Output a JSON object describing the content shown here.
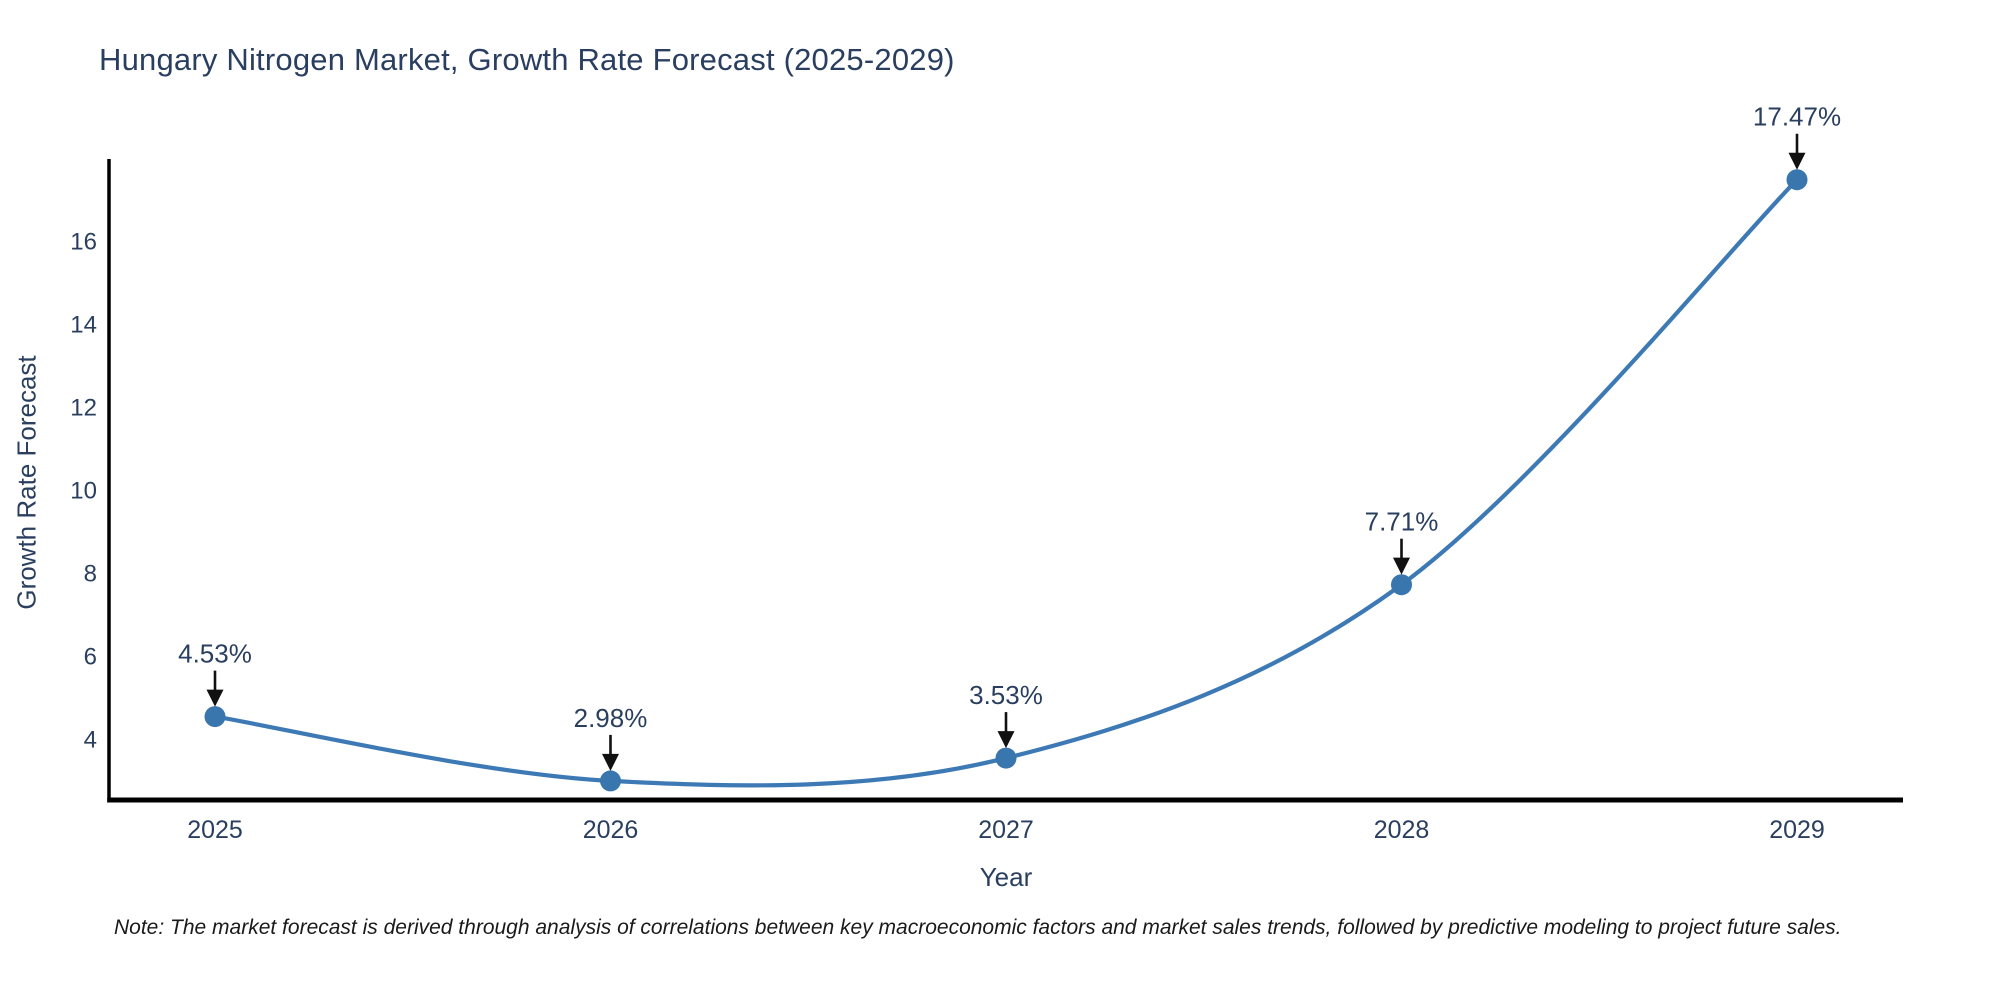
{
  "title": "Hungary Nitrogen Market, Growth Rate Forecast (2025-2029)",
  "footnote": "Note: The market forecast is derived through analysis of correlations between key macroeconomic factors and market sales trends, followed by predictive modeling to project future sales.",
  "colors": {
    "title_text": "#2a3f5f",
    "tick_text": "#2a3f5f",
    "annotation_text": "#2a3f5f",
    "axis_line": "#000000",
    "trace_line": "#3d7ab5",
    "marker_fill": "#3a76ae",
    "arrow": "#111111",
    "background": "#ffffff"
  },
  "chart_data": {
    "type": "line",
    "line_shape": "spline",
    "markers": true,
    "grid": false,
    "legend_position": "none",
    "title": "Hungary Nitrogen Market, Growth Rate Forecast (2025-2029)",
    "xlabel": "Year",
    "ylabel": "Growth Rate Forecast",
    "categories": [
      "2025",
      "2026",
      "2027",
      "2028",
      "2029"
    ],
    "values": [
      4.53,
      2.98,
      3.53,
      7.71,
      17.47
    ],
    "point_labels": [
      "4.53%",
      "2.98%",
      "3.53%",
      "7.71%",
      "17.47%"
    ],
    "annotation_style": "label-above-with-down-arrow",
    "yticks": [
      4,
      6,
      8,
      10,
      12,
      14,
      16
    ],
    "ylim": [
      2.52,
      17.97
    ],
    "series_name": "Growth Rate Forecast"
  }
}
